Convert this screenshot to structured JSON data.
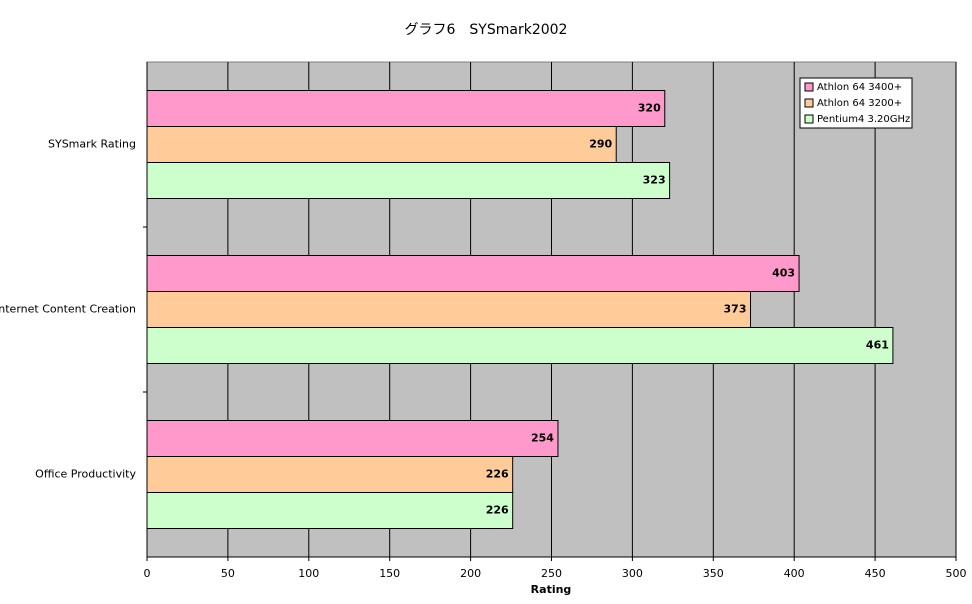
{
  "chart_data": {
    "type": "hbar",
    "title": "グラフ6　SYSmark2002",
    "x_label": "Rating",
    "categories": [
      "SYSmark Rating",
      "Internet Content Creation",
      "Office Productivity"
    ],
    "series": [
      {
        "name": "Athlon 64 3400+",
        "color": "#ff99cc",
        "values": [
          320,
          403,
          254
        ]
      },
      {
        "name": "Athlon 64 3200+",
        "color": "#ffcc99",
        "values": [
          290,
          373,
          226
        ]
      },
      {
        "name": "Pentium4 3.20GHz",
        "color": "#ccffcc",
        "values": [
          323,
          461,
          226
        ]
      }
    ],
    "xlim": [
      0,
      500
    ],
    "xticks": [
      0,
      50,
      100,
      150,
      200,
      250,
      300,
      350,
      400,
      450,
      500
    ],
    "grid": true
  }
}
